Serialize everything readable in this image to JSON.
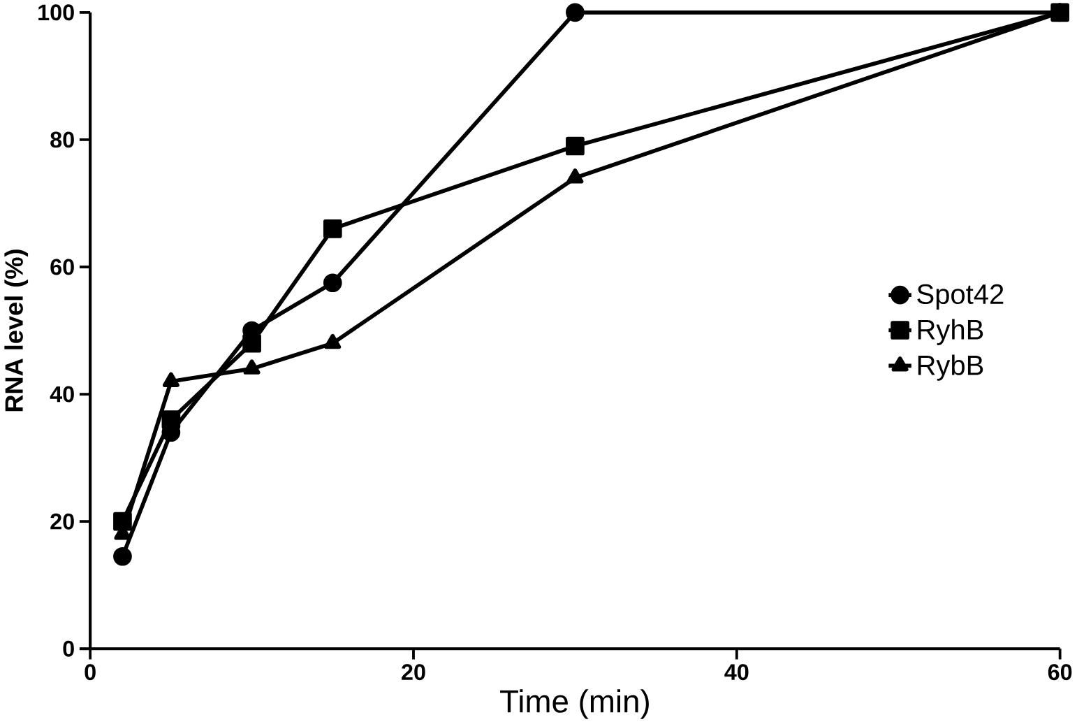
{
  "chart_data": {
    "type": "line",
    "xlabel": "Time (min)",
    "ylabel": "RNA level (%)",
    "x": [
      2,
      5,
      10,
      15,
      30,
      60
    ],
    "series": [
      {
        "name": "Spot42",
        "color": "#000000",
        "marker": "circle",
        "values": [
          14.5,
          34,
          50,
          57.5,
          100,
          100
        ]
      },
      {
        "name": "RyhB",
        "color": "#000000",
        "marker": "square",
        "values": [
          20,
          36,
          48,
          66,
          79,
          100
        ]
      },
      {
        "name": "RybB",
        "color": "#000000",
        "marker": "triangle",
        "values": [
          18,
          42,
          44,
          48,
          74,
          100
        ]
      }
    ],
    "xlim": [
      0,
      60
    ],
    "ylim": [
      0,
      100
    ],
    "xticks": [
      0,
      20,
      40,
      60
    ],
    "yticks": [
      0,
      20,
      40,
      60,
      80,
      100
    ],
    "legend": "right",
    "grid": false,
    "line_style": "solid"
  }
}
